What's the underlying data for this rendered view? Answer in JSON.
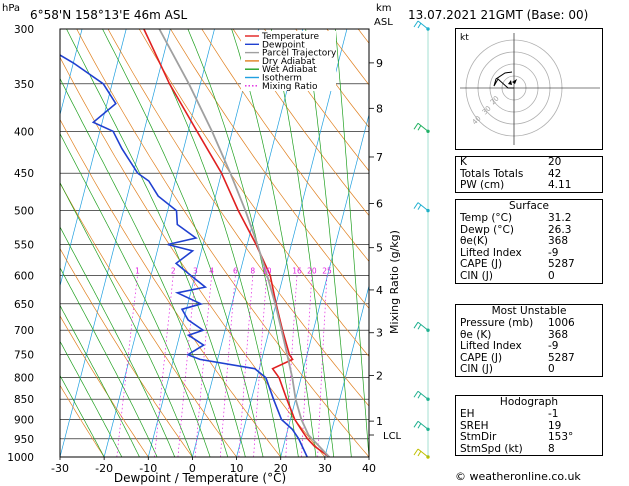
{
  "header": {
    "hpa_unit": "hPa",
    "location": "6°58'N  158°13'E  46m  ASL",
    "km_unit": "km",
    "asl_unit": "ASL",
    "datetime": "13.07.2021  21GMT  (Base: 00)"
  },
  "legend": [
    {
      "label": "Temperature",
      "color": "#e02020"
    },
    {
      "label": "Dewpoint",
      "color": "#2040d0"
    },
    {
      "label": "Parcel Trajectory",
      "color": "#a0a0a0"
    },
    {
      "label": "Dry Adiabat",
      "color": "#e08020"
    },
    {
      "label": "Wet Adiabat",
      "color": "#20a020"
    },
    {
      "label": "Isotherm",
      "color": "#20a0e0"
    },
    {
      "label": "Mixing Ratio",
      "color": "#e020e0"
    }
  ],
  "chart_data": {
    "type": "line",
    "xlabel": "Dewpoint / Temperature (°C)",
    "ylabel_right": "Mixing Ratio (g/kg)",
    "x_ticks": [
      -30,
      -20,
      -10,
      0,
      10,
      20,
      30,
      40
    ],
    "pressure_ticks": [
      300,
      350,
      400,
      450,
      500,
      550,
      600,
      650,
      700,
      750,
      800,
      850,
      900,
      950,
      1000
    ],
    "km_ticks": [
      {
        "km": "1",
        "p": 904
      },
      {
        "km": "2",
        "p": 795
      },
      {
        "km": "3",
        "p": 705
      },
      {
        "km": "4",
        "p": 625
      },
      {
        "km": "5",
        "p": 555
      },
      {
        "km": "6",
        "p": 490
      },
      {
        "km": "7",
        "p": 430
      },
      {
        "km": "8",
        "p": 375
      },
      {
        "km": "9",
        "p": 330
      }
    ],
    "lcl_label": "LCL",
    "lcl_p": 940,
    "mixing_ratio_labels": [
      "1",
      "2",
      "3",
      "4",
      "6",
      "8",
      "10",
      "16",
      "20",
      "25"
    ],
    "mixing_ratio_values": [
      1,
      2,
      3,
      4,
      6,
      8,
      10,
      16,
      20,
      25
    ],
    "series": [
      {
        "name": "Temperature",
        "color": "#e02020",
        "points": [
          [
            1000,
            31
          ],
          [
            970,
            27
          ],
          [
            950,
            25
          ],
          [
            925,
            23
          ],
          [
            900,
            21
          ],
          [
            850,
            18
          ],
          [
            800,
            15
          ],
          [
            780,
            13
          ],
          [
            760,
            17
          ],
          [
            750,
            16
          ],
          [
            700,
            13
          ],
          [
            650,
            10
          ],
          [
            600,
            7
          ],
          [
            550,
            2
          ],
          [
            500,
            -4
          ],
          [
            450,
            -10
          ],
          [
            400,
            -18
          ],
          [
            350,
            -27
          ],
          [
            300,
            -36
          ]
        ]
      },
      {
        "name": "Dewpoint",
        "color": "#2040d0",
        "points": [
          [
            1000,
            26
          ],
          [
            950,
            23
          ],
          [
            925,
            21
          ],
          [
            900,
            18
          ],
          [
            850,
            15
          ],
          [
            800,
            12
          ],
          [
            780,
            9
          ],
          [
            760,
            -4
          ],
          [
            750,
            -7
          ],
          [
            730,
            -4
          ],
          [
            710,
            -8
          ],
          [
            700,
            -5
          ],
          [
            680,
            -9
          ],
          [
            660,
            -11
          ],
          [
            650,
            -7
          ],
          [
            630,
            -13
          ],
          [
            620,
            -7
          ],
          [
            600,
            -11
          ],
          [
            580,
            -15
          ],
          [
            560,
            -12
          ],
          [
            550,
            -18
          ],
          [
            540,
            -12
          ],
          [
            520,
            -17
          ],
          [
            500,
            -18
          ],
          [
            480,
            -23
          ],
          [
            460,
            -26
          ],
          [
            450,
            -29
          ],
          [
            420,
            -34
          ],
          [
            400,
            -37
          ],
          [
            390,
            -42
          ],
          [
            370,
            -38
          ],
          [
            350,
            -42
          ],
          [
            330,
            -50
          ],
          [
            300,
            -65
          ]
        ]
      },
      {
        "name": "Parcel Trajectory",
        "color": "#a0a0a0",
        "points": [
          [
            1000,
            31
          ],
          [
            940,
            25
          ],
          [
            900,
            22.5
          ],
          [
            850,
            20
          ],
          [
            800,
            18
          ],
          [
            750,
            15.5
          ],
          [
            700,
            12.8
          ],
          [
            650,
            9.8
          ],
          [
            600,
            6.3
          ],
          [
            550,
            2.3
          ],
          [
            500,
            -2.4
          ],
          [
            450,
            -8
          ],
          [
            400,
            -14.6
          ],
          [
            350,
            -22.6
          ],
          [
            300,
            -32.5
          ]
        ]
      }
    ],
    "wind_barbs": [
      {
        "p": 1000,
        "dir": 150,
        "spd": 8
      },
      {
        "p": 925,
        "dir": 140,
        "spd": 10
      },
      {
        "p": 850,
        "dir": 110,
        "spd": 10
      },
      {
        "p": 700,
        "dir": 90,
        "spd": 12
      },
      {
        "p": 500,
        "dir": 70,
        "spd": 10
      },
      {
        "p": 400,
        "dir": 90,
        "spd": 10
      },
      {
        "p": 300,
        "dir": 60,
        "spd": 10
      }
    ]
  },
  "hodograph": {
    "unit": "kt",
    "ring_labels": [
      "20",
      "30",
      "40"
    ]
  },
  "indices": {
    "rows": [
      {
        "k": "K",
        "v": "20"
      },
      {
        "k": "Totals Totals",
        "v": "42"
      },
      {
        "k": "PW (cm)",
        "v": "4.11"
      }
    ]
  },
  "surface": {
    "title": "Surface",
    "rows": [
      {
        "k": "Temp (°C)",
        "v": "31.2"
      },
      {
        "k": "Dewp (°C)",
        "v": "26.3"
      },
      {
        "k": "θe(K)",
        "v": "368"
      },
      {
        "k": "Lifted Index",
        "v": "-9"
      },
      {
        "k": "CAPE (J)",
        "v": "5287"
      },
      {
        "k": "CIN (J)",
        "v": "0"
      }
    ]
  },
  "most_unstable": {
    "title": "Most Unstable",
    "rows": [
      {
        "k": "Pressure (mb)",
        "v": "1006"
      },
      {
        "k": "θe (K)",
        "v": "368"
      },
      {
        "k": "Lifted Index",
        "v": "-9"
      },
      {
        "k": "CAPE (J)",
        "v": "5287"
      },
      {
        "k": "CIN (J)",
        "v": "0"
      }
    ]
  },
  "hodo_table": {
    "title": "Hodograph",
    "rows": [
      {
        "k": "EH",
        "v": "-1"
      },
      {
        "k": "SREH",
        "v": "19"
      },
      {
        "k": "StmDir",
        "v": "153°"
      },
      {
        "k": "StmSpd (kt)",
        "v": "8"
      }
    ]
  },
  "credit": "© weatheronline.co.uk"
}
